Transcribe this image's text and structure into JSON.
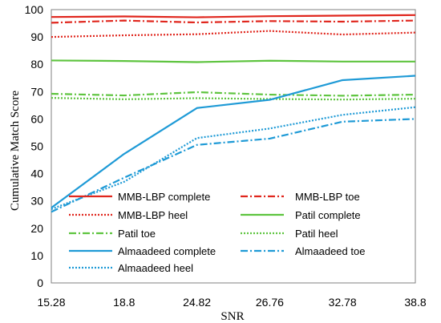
{
  "chart_data": {
    "type": "line",
    "categories": [
      "15.28",
      "18.8",
      "24.82",
      "26.76",
      "32.78",
      "38.8"
    ],
    "xlabel": "SNR",
    "ylabel": "Cumulative Match Score",
    "ylim": [
      0,
      100
    ],
    "yticks": [
      0,
      10,
      20,
      30,
      40,
      50,
      60,
      70,
      80,
      90,
      100
    ],
    "grid": false,
    "legend_position": "bottom",
    "series": [
      {
        "name": "MMB-LBP complete",
        "color": "#e0261d",
        "dash": "solid",
        "values": [
          97.3,
          97.5,
          97.2,
          97.6,
          97.8,
          98.0
        ]
      },
      {
        "name": "MMB-LBP toe",
        "color": "#e0261d",
        "dash": "dashdot",
        "values": [
          95.2,
          96.0,
          95.3,
          95.8,
          95.6,
          96.0
        ]
      },
      {
        "name": "MMB-LBP heel",
        "color": "#e0261d",
        "dash": "dot",
        "values": [
          90.0,
          90.6,
          91.0,
          92.2,
          90.9,
          91.6
        ]
      },
      {
        "name": "Patil complete",
        "color": "#5ec43f",
        "dash": "solid",
        "values": [
          81.4,
          81.2,
          80.8,
          81.3,
          81.0,
          81.0
        ]
      },
      {
        "name": "Patil toe",
        "color": "#5ec43f",
        "dash": "dashdot",
        "values": [
          69.2,
          68.6,
          69.8,
          68.9,
          68.5,
          68.9
        ]
      },
      {
        "name": "Patil heel",
        "color": "#5ec43f",
        "dash": "dot",
        "values": [
          67.7,
          67.2,
          67.6,
          67.3,
          67.1,
          67.4
        ]
      },
      {
        "name": "Almaadeed complete",
        "color": "#1e9ad6",
        "dash": "solid",
        "values": [
          27.5,
          47.2,
          64.0,
          67.0,
          74.2,
          75.8
        ]
      },
      {
        "name": "Almaadeed toe",
        "color": "#1e9ad6",
        "dash": "dashdot",
        "values": [
          26.0,
          38.5,
          50.5,
          52.8,
          59.0,
          60.0
        ]
      },
      {
        "name": "Almaadeed heel",
        "color": "#1e9ad6",
        "dash": "dot",
        "values": [
          27.0,
          37.0,
          53.0,
          56.5,
          61.5,
          64.3
        ]
      }
    ]
  }
}
